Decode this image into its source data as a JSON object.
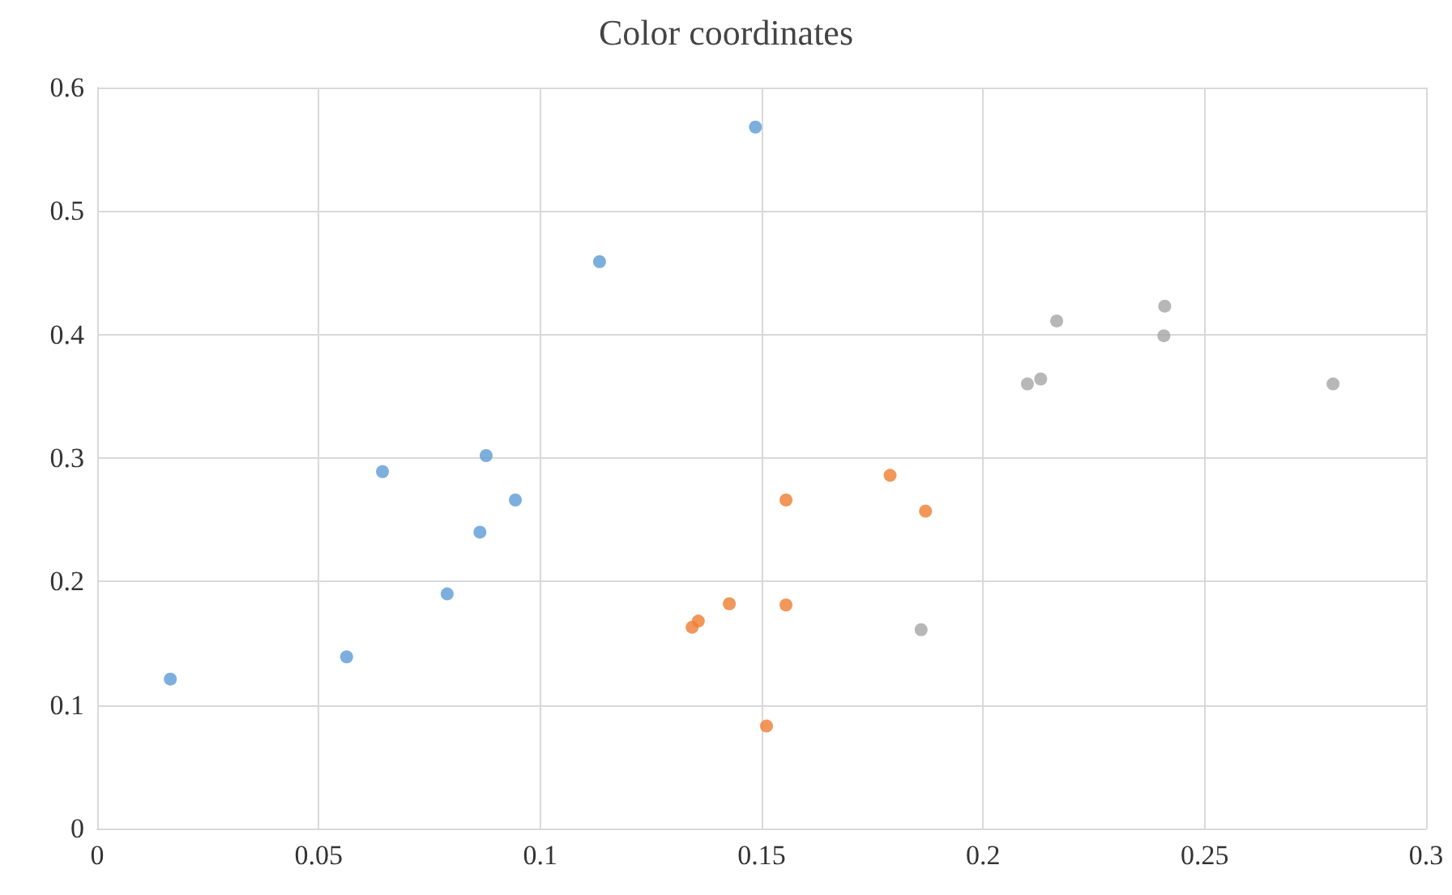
{
  "chart_data": {
    "type": "scatter",
    "title": "Color coordinates",
    "series": [
      {
        "color": "#5b9bd5",
        "x": [
          0.0165,
          0.0563,
          0.0644,
          0.079,
          0.0864,
          0.0878,
          0.0944,
          0.1134,
          0.1486
        ],
        "values": [
          0.121,
          0.139,
          0.289,
          0.19,
          0.24,
          0.302,
          0.266,
          0.459,
          0.568
        ]
      },
      {
        "color": "#ed7d31",
        "x": [
          0.1343,
          0.1357,
          0.1427,
          0.1555,
          0.1555,
          0.1511,
          0.179,
          0.187
        ],
        "values": [
          0.163,
          0.168,
          0.182,
          0.266,
          0.181,
          0.083,
          0.286,
          0.257
        ]
      },
      {
        "color": "#a5a5a5",
        "x": [
          0.186,
          0.21,
          0.213,
          0.2166,
          0.2408,
          0.241,
          0.279
        ],
        "values": [
          0.161,
          0.36,
          0.364,
          0.411,
          0.399,
          0.423,
          0.36
        ]
      }
    ],
    "xlim": [
      0,
      0.3
    ],
    "xticks": [
      0,
      0.05,
      0.1,
      0.15,
      0.2,
      0.25,
      0.3
    ],
    "ylim": [
      0,
      0.6
    ],
    "yticks": [
      0,
      0.1,
      0.2,
      0.3,
      0.4,
      0.5,
      0.6
    ],
    "grid": true,
    "marker": "circle"
  }
}
